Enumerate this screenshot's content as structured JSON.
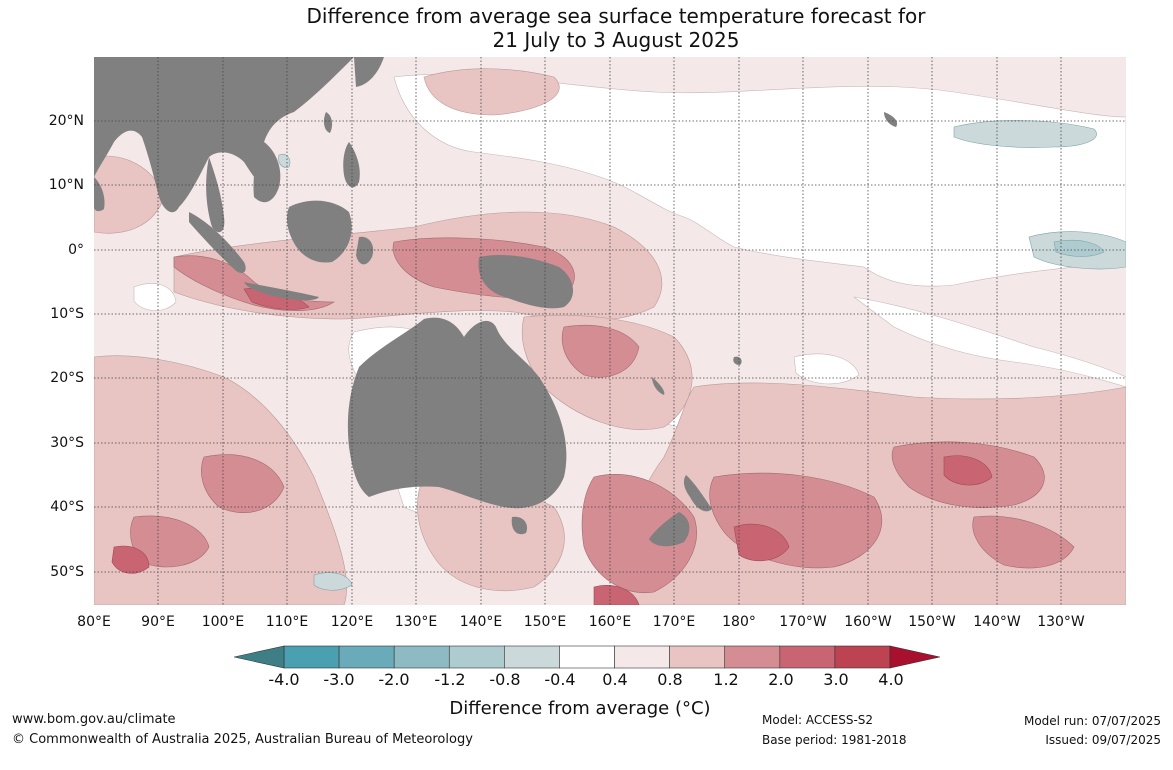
{
  "title": {
    "line1": "Difference from average sea surface temperature forecast for",
    "line2": "21 July to 3 August 2025"
  },
  "lat_labels": [
    "20°N",
    "10°N",
    "0°",
    "10°S",
    "20°S",
    "30°S",
    "40°S",
    "50°S"
  ],
  "lon_labels": [
    "80°E",
    "90°E",
    "100°E",
    "110°E",
    "120°E",
    "130°E",
    "140°E",
    "150°E",
    "160°E",
    "170°E",
    "180°",
    "170°W",
    "160°W",
    "150°W",
    "140°W",
    "130°W"
  ],
  "colorbar": {
    "ticks": [
      "-4.0",
      "-3.0",
      "-2.0",
      "-1.2",
      "-0.8",
      "-0.4",
      "0.4",
      "0.8",
      "1.2",
      "2.0",
      "3.0",
      "4.0"
    ],
    "colors": [
      "#4a9fb0",
      "#6aabb9",
      "#8dbac3",
      "#aecbd0",
      "#ccd9db",
      "#ffffff",
      "#f4e8e8",
      "#e8c4c2",
      "#d48d93",
      "#c96573",
      "#bd4352"
    ],
    "extend_low": "#3e7f86",
    "extend_high": "#a8102d",
    "label": "Difference from average (°C)"
  },
  "colors": {
    "land": "#808080",
    "grid": "#444444"
  },
  "footer": {
    "url": "www.bom.gov.au/climate",
    "copyright": "© Commonwealth of Australia 2025, Australian Bureau of Meteorology",
    "model": "Model: ACCESS-S2",
    "base_period": "Base period: 1981-2018",
    "model_run": "Model run: 07/07/2025",
    "issued": "Issued: 09/07/2025"
  }
}
